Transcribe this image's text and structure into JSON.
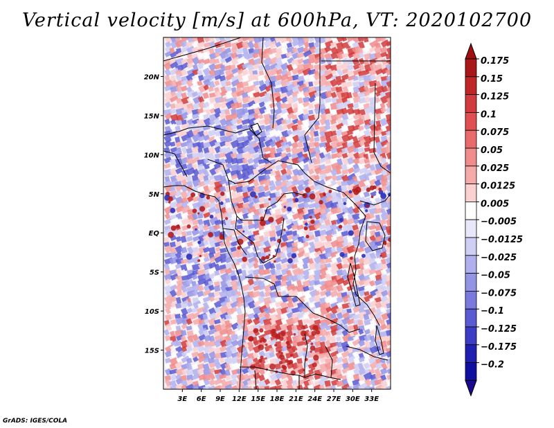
{
  "title": "Vertical velocity [m/s] at 600hPa, VT: 2020102700",
  "footer": "GrADS: IGES/COLA",
  "map": {
    "lon_range": [
      0,
      36
    ],
    "lat_range": [
      -20,
      25
    ],
    "x_ticks": [
      "3E",
      "6E",
      "9E",
      "12E",
      "15E",
      "18E",
      "21E",
      "24E",
      "27E",
      "30E",
      "33E"
    ],
    "x_tick_values": [
      3,
      6,
      9,
      12,
      15,
      18,
      21,
      24,
      27,
      30,
      33
    ],
    "y_ticks": [
      "20N",
      "15N",
      "10N",
      "5N",
      "EQ",
      "5S",
      "10S",
      "15S"
    ],
    "y_tick_values": [
      20,
      15,
      10,
      5,
      0,
      -5,
      -10,
      -15
    ]
  },
  "colorbar": {
    "labels": [
      "0.175",
      "0.15",
      "0.125",
      "0.1",
      "0.075",
      "0.05",
      "0.025",
      "0.0125",
      "0.005",
      "−0.005",
      "−0.0125",
      "−0.025",
      "−0.05",
      "−0.075",
      "−0.1",
      "−0.125",
      "−0.175",
      "−0.2"
    ],
    "colors": [
      "#a81818",
      "#c02828",
      "#d23c3c",
      "#e05050",
      "#e86a6a",
      "#f08c8c",
      "#f5aaaa",
      "#fbd0d0",
      "#ffffff",
      "#e8e8fa",
      "#cfcff4",
      "#b0b0ee",
      "#9494e6",
      "#7a7ade",
      "#5a5ad2",
      "#3c3cc4",
      "#2020b0",
      "#1010a0"
    ],
    "top_arrow_color": "#a01010",
    "bottom_arrow_color": "#1a0a90"
  }
}
